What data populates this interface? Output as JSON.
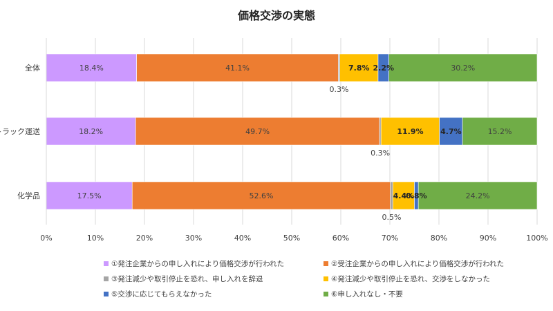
{
  "chart_data": {
    "type": "bar",
    "orientation": "horizontal",
    "stacked": "percent",
    "title": "価格交渉の実態",
    "xlabel": "",
    "ylabel": "",
    "xlim": [
      0,
      100
    ],
    "x_ticks": [
      "0%",
      "10%",
      "20%",
      "30%",
      "40%",
      "50%",
      "60%",
      "70%",
      "80%",
      "90%",
      "100%"
    ],
    "grid": true,
    "legend_position": "bottom",
    "categories": [
      "全体",
      "トラック運送",
      "化学品"
    ],
    "series": [
      {
        "name": "①発注企業からの申し入れにより価格交渉が行われた",
        "color": "#cc99ff",
        "values": [
          18.4,
          18.2,
          17.5
        ],
        "labels": [
          "18.4%",
          "18.2%",
          "17.5%"
        ]
      },
      {
        "name": "②受注企業からの申し入れにより価格交渉が行われた",
        "color": "#ed7d31",
        "values": [
          41.1,
          49.7,
          52.6
        ],
        "labels": [
          "41.1%",
          "49.7%",
          "52.6%"
        ]
      },
      {
        "name": "③発注減少や取引停止を恐れ、申し入れを辞退",
        "color": "#a5a5a5",
        "values": [
          0.3,
          0.3,
          0.5
        ],
        "labels": [
          "0.3%",
          "0.3%",
          "0.5%"
        ]
      },
      {
        "name": "④発注減少や取引停止を恐れ、交渉をしなかった",
        "color": "#ffc000",
        "values": [
          7.8,
          11.9,
          4.4
        ],
        "labels": [
          "7.8%",
          "11.9%",
          "4.4%"
        ]
      },
      {
        "name": "⑤交渉に応じてもらえなかった",
        "color": "#4472c4",
        "values": [
          2.2,
          4.7,
          0.8
        ],
        "labels": [
          "2.2%",
          "4.7%",
          "0.8%"
        ]
      },
      {
        "name": "⑥申し入れなし・不要",
        "color": "#70ad47",
        "values": [
          30.2,
          15.2,
          24.2
        ],
        "labels": [
          "30.2%",
          "15.2%",
          "24.2%"
        ]
      }
    ]
  }
}
